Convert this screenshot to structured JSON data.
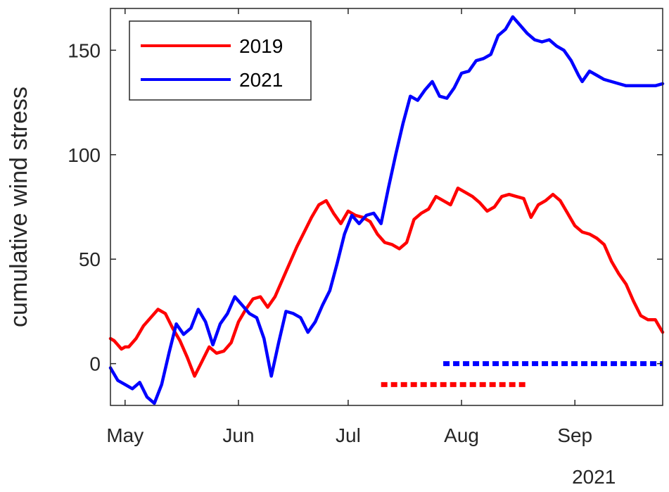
{
  "chart_data": {
    "type": "line",
    "title": "",
    "xlabel": "",
    "ylabel": "cumulative wind stress",
    "year_label": "2021",
    "xlim": [
      "2021-04-27",
      "2021-09-25"
    ],
    "ylim": [
      -20,
      170
    ],
    "yticks": [
      0,
      50,
      100,
      150
    ],
    "xticks": [
      {
        "date": "2021-05-01",
        "label": "May"
      },
      {
        "date": "2021-06-01",
        "label": "Jun"
      },
      {
        "date": "2021-07-01",
        "label": "Jul"
      },
      {
        "date": "2021-08-01",
        "label": "Aug"
      },
      {
        "date": "2021-09-01",
        "label": "Sep"
      }
    ],
    "legend": {
      "position": "top-left"
    },
    "grid": false,
    "series": [
      {
        "name": "2019",
        "color": "#ff0000",
        "x": [
          "2021-04-27",
          "2021-04-28",
          "2021-04-29",
          "2021-04-30",
          "2021-05-01",
          "2021-05-02",
          "2021-05-04",
          "2021-05-06",
          "2021-05-08",
          "2021-05-10",
          "2021-05-12",
          "2021-05-14",
          "2021-05-16",
          "2021-05-18",
          "2021-05-20",
          "2021-05-22",
          "2021-05-24",
          "2021-05-26",
          "2021-05-28",
          "2021-05-30",
          "2021-06-01",
          "2021-06-03",
          "2021-06-05",
          "2021-06-07",
          "2021-06-09",
          "2021-06-11",
          "2021-06-13",
          "2021-06-15",
          "2021-06-17",
          "2021-06-19",
          "2021-06-21",
          "2021-06-23",
          "2021-06-25",
          "2021-06-27",
          "2021-06-29",
          "2021-07-01",
          "2021-07-03",
          "2021-07-05",
          "2021-07-07",
          "2021-07-09",
          "2021-07-11",
          "2021-07-13",
          "2021-07-15",
          "2021-07-17",
          "2021-07-19",
          "2021-07-21",
          "2021-07-23",
          "2021-07-25",
          "2021-07-27",
          "2021-07-29",
          "2021-07-31",
          "2021-08-02",
          "2021-08-04",
          "2021-08-06",
          "2021-08-08",
          "2021-08-10",
          "2021-08-12",
          "2021-08-14",
          "2021-08-16",
          "2021-08-18",
          "2021-08-20",
          "2021-08-22",
          "2021-08-24",
          "2021-08-26",
          "2021-08-28",
          "2021-08-30",
          "2021-09-01",
          "2021-09-03",
          "2021-09-05",
          "2021-09-07",
          "2021-09-09",
          "2021-09-11",
          "2021-09-13",
          "2021-09-15",
          "2021-09-17",
          "2021-09-19",
          "2021-09-21",
          "2021-09-23",
          "2021-09-24",
          "2021-09-25"
        ],
        "y": [
          12,
          11,
          9,
          7,
          8,
          8,
          12,
          18,
          22,
          26,
          24,
          17,
          11,
          3,
          -6,
          1,
          8,
          5,
          6,
          10,
          20,
          26,
          31,
          32,
          27,
          32,
          40,
          48,
          56,
          63,
          70,
          76,
          78,
          72,
          67,
          73,
          71,
          70,
          68,
          62,
          58,
          57,
          55,
          58,
          69,
          72,
          74,
          80,
          78,
          76,
          84,
          82,
          80,
          77,
          73,
          75,
          80,
          81,
          80,
          79,
          70,
          76,
          78,
          81,
          78,
          72,
          66,
          63,
          62,
          60,
          57,
          49,
          43,
          38,
          30,
          23,
          21,
          21,
          18,
          15
        ]
      },
      {
        "name": "2021",
        "color": "#0000ff",
        "x": [
          "2021-04-27",
          "2021-04-29",
          "2021-05-01",
          "2021-05-03",
          "2021-05-05",
          "2021-05-07",
          "2021-05-09",
          "2021-05-11",
          "2021-05-13",
          "2021-05-15",
          "2021-05-17",
          "2021-05-19",
          "2021-05-21",
          "2021-05-23",
          "2021-05-25",
          "2021-05-27",
          "2021-05-29",
          "2021-05-31",
          "2021-06-02",
          "2021-06-04",
          "2021-06-06",
          "2021-06-08",
          "2021-06-10",
          "2021-06-12",
          "2021-06-14",
          "2021-06-16",
          "2021-06-18",
          "2021-06-20",
          "2021-06-22",
          "2021-06-24",
          "2021-06-26",
          "2021-06-28",
          "2021-06-30",
          "2021-07-02",
          "2021-07-04",
          "2021-07-06",
          "2021-07-08",
          "2021-07-10",
          "2021-07-12",
          "2021-07-14",
          "2021-07-16",
          "2021-07-18",
          "2021-07-20",
          "2021-07-22",
          "2021-07-24",
          "2021-07-26",
          "2021-07-28",
          "2021-07-30",
          "2021-08-01",
          "2021-08-03",
          "2021-08-05",
          "2021-08-07",
          "2021-08-09",
          "2021-08-11",
          "2021-08-13",
          "2021-08-15",
          "2021-08-17",
          "2021-08-19",
          "2021-08-21",
          "2021-08-23",
          "2021-08-25",
          "2021-08-27",
          "2021-08-29",
          "2021-08-31",
          "2021-09-02",
          "2021-09-03",
          "2021-09-05",
          "2021-09-07",
          "2021-09-09",
          "2021-09-11",
          "2021-09-13",
          "2021-09-15",
          "2021-09-17",
          "2021-09-19",
          "2021-09-21",
          "2021-09-23",
          "2021-09-25"
        ],
        "y": [
          -2,
          -8,
          -10,
          -12,
          -9,
          -16,
          -19,
          -10,
          5,
          19,
          14,
          17,
          26,
          20,
          9,
          19,
          24,
          32,
          28,
          24,
          22,
          12,
          -6,
          10,
          25,
          24,
          22,
          15,
          20,
          28,
          35,
          48,
          62,
          71,
          67,
          71,
          72,
          67,
          84,
          100,
          115,
          128,
          126,
          131,
          135,
          128,
          127,
          132,
          139,
          140,
          145,
          146,
          148,
          157,
          160,
          166,
          162,
          158,
          155,
          154,
          155,
          152,
          150,
          145,
          138,
          135,
          140,
          138,
          136,
          135,
          134,
          133,
          133,
          133,
          133,
          133,
          134
        ]
      }
    ],
    "annotations": [
      {
        "type": "dotted-hline",
        "color": "#ff0000",
        "y": -10,
        "x_start": "2021-07-10",
        "x_end": "2021-08-19"
      },
      {
        "type": "dotted-hline",
        "color": "#0000ff",
        "y": 0,
        "x_start": "2021-07-27",
        "x_end": "2021-09-25"
      }
    ]
  }
}
